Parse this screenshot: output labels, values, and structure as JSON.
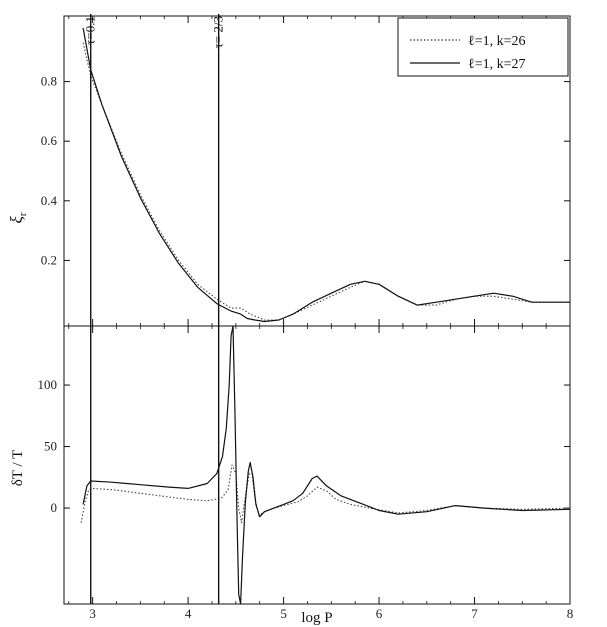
{
  "chart_data": {
    "type": "line",
    "x_label": "log P",
    "x_range": [
      2.7,
      8
    ],
    "x_ticks": [
      "3",
      "4",
      "5",
      "6",
      "7",
      "8"
    ],
    "vertical_markers": [
      {
        "label": "τ=0.1",
        "x": 2.98
      },
      {
        "label": "τ= 2/3",
        "x": 4.32
      }
    ],
    "legend": {
      "position": "top-right",
      "entries": [
        {
          "label": "ℓ=1, k=26",
          "style": "dotted"
        },
        {
          "label": "ℓ=1, k=27",
          "style": "solid"
        }
      ]
    },
    "panels": [
      {
        "ylabel_main": "ξ",
        "ylabel_sub": "r",
        "y_range": [
          -0.02,
          1.02
        ],
        "y_ticks": [
          "0.2",
          "0.4",
          "0.6",
          "0.8"
        ],
        "series": [
          {
            "name": "ℓ=1, k=26",
            "style": "dotted",
            "points": [
              [
                2.9,
                0.93
              ],
              [
                2.98,
                0.82
              ],
              [
                3.1,
                0.72
              ],
              [
                3.3,
                0.56
              ],
              [
                3.5,
                0.42
              ],
              [
                3.7,
                0.3
              ],
              [
                3.9,
                0.2
              ],
              [
                4.1,
                0.12
              ],
              [
                4.3,
                0.07
              ],
              [
                4.45,
                0.04
              ],
              [
                4.55,
                0.04
              ],
              [
                4.65,
                0.02
              ],
              [
                4.8,
                0.0
              ],
              [
                4.95,
                0.0
              ],
              [
                5.1,
                0.02
              ],
              [
                5.3,
                0.05
              ],
              [
                5.5,
                0.08
              ],
              [
                5.7,
                0.11
              ],
              [
                5.85,
                0.13
              ],
              [
                6.0,
                0.12
              ],
              [
                6.2,
                0.08
              ],
              [
                6.4,
                0.05
              ],
              [
                6.6,
                0.05
              ],
              [
                6.8,
                0.07
              ],
              [
                7.0,
                0.08
              ],
              [
                7.2,
                0.08
              ],
              [
                7.4,
                0.07
              ],
              [
                7.6,
                0.06
              ],
              [
                7.8,
                0.06
              ],
              [
                8.0,
                0.06
              ]
            ]
          },
          {
            "name": "ℓ=1, k=27",
            "style": "solid",
            "points": [
              [
                2.9,
                0.98
              ],
              [
                2.98,
                0.84
              ],
              [
                3.1,
                0.72
              ],
              [
                3.3,
                0.55
              ],
              [
                3.5,
                0.41
              ],
              [
                3.7,
                0.29
              ],
              [
                3.9,
                0.19
              ],
              [
                4.1,
                0.11
              ],
              [
                4.3,
                0.055
              ],
              [
                4.45,
                0.03
              ],
              [
                4.55,
                0.02
              ],
              [
                4.62,
                0.005
              ],
              [
                4.7,
                0.0
              ],
              [
                4.8,
                -0.005
              ],
              [
                4.95,
                0.0
              ],
              [
                5.1,
                0.02
              ],
              [
                5.3,
                0.06
              ],
              [
                5.5,
                0.09
              ],
              [
                5.7,
                0.12
              ],
              [
                5.85,
                0.13
              ],
              [
                6.0,
                0.12
              ],
              [
                6.2,
                0.08
              ],
              [
                6.4,
                0.05
              ],
              [
                6.6,
                0.06
              ],
              [
                6.8,
                0.07
              ],
              [
                7.0,
                0.08
              ],
              [
                7.2,
                0.09
              ],
              [
                7.4,
                0.08
              ],
              [
                7.6,
                0.06
              ],
              [
                7.8,
                0.06
              ],
              [
                8.0,
                0.06
              ]
            ]
          }
        ]
      },
      {
        "ylabel_main": "δT / T",
        "ylabel_sub": "",
        "y_range": [
          -78,
          148
        ],
        "y_ticks": [
          "0",
          "50",
          "100"
        ],
        "series": [
          {
            "name": "ℓ=1, k=26",
            "style": "dotted",
            "points": [
              [
                2.88,
                -12
              ],
              [
                2.92,
                5
              ],
              [
                2.96,
                15
              ],
              [
                3.0,
                16
              ],
              [
                3.2,
                15
              ],
              [
                3.5,
                12
              ],
              [
                3.8,
                9
              ],
              [
                4.0,
                7
              ],
              [
                4.2,
                6
              ],
              [
                4.35,
                8
              ],
              [
                4.42,
                15
              ],
              [
                4.46,
                35
              ],
              [
                4.5,
                28
              ],
              [
                4.53,
                0
              ],
              [
                4.56,
                -12
              ],
              [
                4.6,
                10
              ],
              [
                4.64,
                28
              ],
              [
                4.67,
                28
              ],
              [
                4.7,
                8
              ],
              [
                4.74,
                -6
              ],
              [
                4.8,
                -3
              ],
              [
                4.9,
                0
              ],
              [
                5.0,
                2
              ],
              [
                5.15,
                5
              ],
              [
                5.25,
                10
              ],
              [
                5.35,
                17
              ],
              [
                5.45,
                14
              ],
              [
                5.55,
                7
              ],
              [
                5.7,
                3
              ],
              [
                5.9,
                0
              ],
              [
                6.2,
                -4
              ],
              [
                6.5,
                -2
              ],
              [
                6.8,
                2
              ],
              [
                7.1,
                0
              ],
              [
                7.5,
                -1
              ],
              [
                8.0,
                0
              ]
            ]
          },
          {
            "name": "ℓ=1, k=27",
            "style": "solid",
            "points": [
              [
                2.9,
                3
              ],
              [
                2.94,
                18
              ],
              [
                2.98,
                22
              ],
              [
                3.2,
                21
              ],
              [
                3.5,
                19
              ],
              [
                3.8,
                17
              ],
              [
                4.0,
                16
              ],
              [
                4.2,
                20
              ],
              [
                4.3,
                28
              ],
              [
                4.36,
                42
              ],
              [
                4.4,
                65
              ],
              [
                4.43,
                100
              ],
              [
                4.45,
                140
              ],
              [
                4.47,
                148
              ],
              [
                4.49,
                80
              ],
              [
                4.51,
                0
              ],
              [
                4.53,
                -70
              ],
              [
                4.55,
                -78
              ],
              [
                4.57,
                -40
              ],
              [
                4.6,
                5
              ],
              [
                4.63,
                30
              ],
              [
                4.65,
                37
              ],
              [
                4.68,
                25
              ],
              [
                4.71,
                3
              ],
              [
                4.75,
                -7
              ],
              [
                4.8,
                -3
              ],
              [
                4.9,
                0
              ],
              [
                5.0,
                3
              ],
              [
                5.1,
                6
              ],
              [
                5.2,
                12
              ],
              [
                5.3,
                24
              ],
              [
                5.35,
                26
              ],
              [
                5.45,
                18
              ],
              [
                5.6,
                10
              ],
              [
                5.8,
                4
              ],
              [
                6.0,
                -2
              ],
              [
                6.2,
                -5
              ],
              [
                6.5,
                -3
              ],
              [
                6.8,
                2
              ],
              [
                7.1,
                0
              ],
              [
                7.5,
                -2
              ],
              [
                8.0,
                -1
              ]
            ]
          }
        ]
      }
    ]
  }
}
